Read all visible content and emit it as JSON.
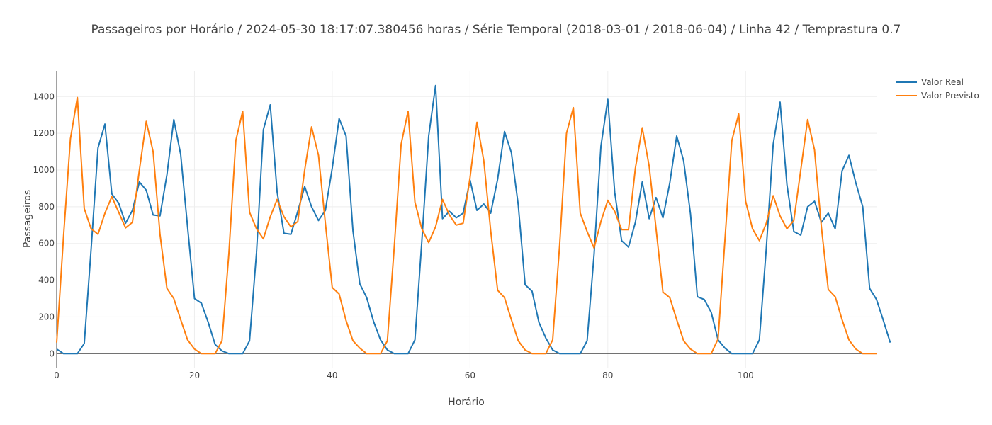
{
  "chart_data": {
    "type": "line",
    "title": "Passageiros por Horário / 2024-05-30 18:17:07.380456 horas / Série Temporal (2018-03-01 / 2018-06-04) / Linha 42 / Temprastura 0.7",
    "xlabel": "Horário",
    "ylabel": "Passageiros",
    "xlim": [
      0,
      119
    ],
    "ylim": [
      -80,
      1540
    ],
    "x_ticks": [
      0,
      20,
      40,
      60,
      80,
      100
    ],
    "y_ticks": [
      0,
      200,
      400,
      600,
      800,
      1000,
      1200,
      1400
    ],
    "grid": true,
    "legend_position": "top-right",
    "series": [
      {
        "name": "Valor Real",
        "color": "#1f77b4",
        "values": [
          25,
          0,
          0,
          0,
          55,
          570,
          1120,
          1250,
          870,
          820,
          710,
          780,
          935,
          890,
          755,
          750,
          975,
          1275,
          1085,
          690,
          300,
          275,
          170,
          50,
          15,
          0,
          0,
          0,
          70,
          550,
          1220,
          1355,
          880,
          655,
          650,
          775,
          910,
          800,
          725,
          780,
          1010,
          1280,
          1185,
          670,
          380,
          305,
          175,
          75,
          20,
          0,
          0,
          0,
          75,
          610,
          1185,
          1460,
          735,
          775,
          740,
          765,
          945,
          780,
          815,
          765,
          950,
          1210,
          1095,
          810,
          375,
          340,
          170,
          85,
          20,
          0,
          0,
          0,
          0,
          70,
          540,
          1130,
          1385,
          880,
          615,
          580,
          715,
          935,
          735,
          850,
          740,
          930,
          1185,
          1050,
          760,
          310,
          295,
          225,
          75,
          30,
          0,
          0,
          0,
          0,
          75,
          570,
          1140,
          1370,
          920,
          665,
          645,
          800,
          830,
          715,
          765,
          680,
          995,
          1080,
          930,
          800,
          355,
          295,
          180,
          60
        ]
      },
      {
        "name": "Valor Previsto",
        "color": "#ff7f0e",
        "values": [
          60,
          640,
          1170,
          1395,
          790,
          680,
          650,
          765,
          855,
          770,
          685,
          715,
          1000,
          1265,
          1100,
          650,
          355,
          300,
          185,
          75,
          25,
          0,
          0,
          0,
          70,
          550,
          1160,
          1320,
          770,
          680,
          625,
          745,
          840,
          745,
          690,
          720,
          1000,
          1235,
          1080,
          710,
          360,
          325,
          180,
          70,
          30,
          0,
          0,
          0,
          70,
          580,
          1140,
          1320,
          825,
          680,
          605,
          690,
          840,
          755,
          700,
          710,
          960,
          1260,
          1050,
          670,
          345,
          305,
          185,
          70,
          20,
          0,
          0,
          0,
          75,
          590,
          1200,
          1340,
          765,
          665,
          575,
          720,
          835,
          775,
          675,
          675,
          1010,
          1230,
          1020,
          680,
          335,
          305,
          185,
          70,
          25,
          0,
          0,
          0,
          80,
          620,
          1160,
          1305,
          830,
          680,
          615,
          710,
          860,
          750,
          680,
          725,
          1000,
          1275,
          1110,
          690,
          350,
          310,
          185,
          75,
          25,
          0,
          0,
          0
        ]
      }
    ]
  }
}
